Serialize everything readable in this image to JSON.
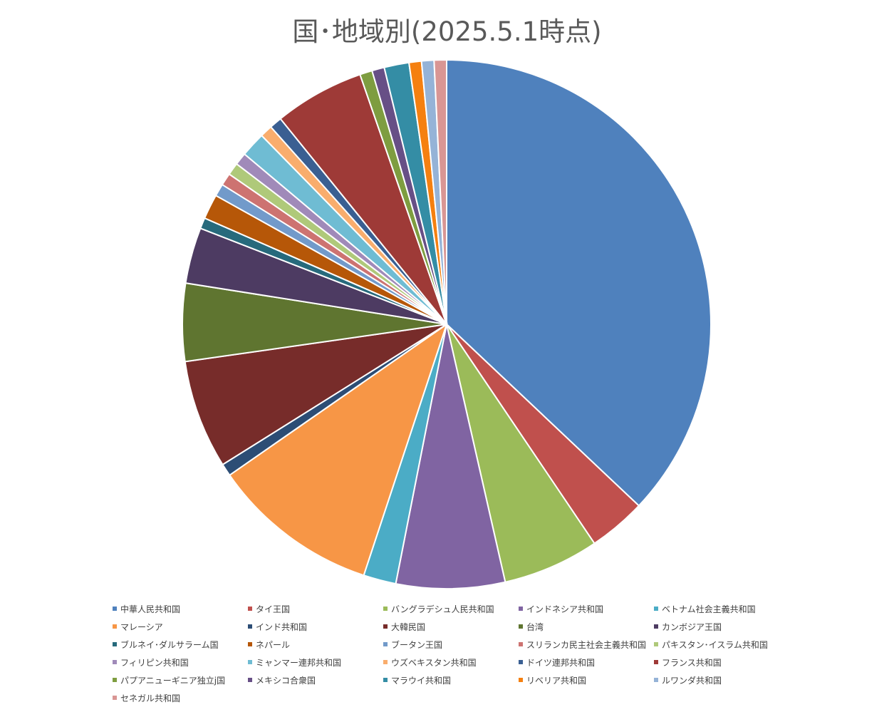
{
  "chart_data": {
    "type": "pie",
    "title": "国･地域別(2025.5.1時点)",
    "legend_position": "bottom",
    "categories": [
      "中華人民共和国",
      "タイ王国",
      "バングラデシュ人民共和国",
      "インドネシア共和国",
      "ベトナム社会主義共和国",
      "マレーシア",
      "インド共和国",
      "大韓民国",
      "台湾",
      "カンボジア王国",
      "ブルネイ･ダルサラーム国",
      "ネパール",
      "ブータン王国",
      "スリランカ民主社会主義共和国",
      "パキスタン･イスラム共和国",
      "フィリピン共和国",
      "ミャンマー連邦共和国",
      "ウズベキスタン共和国",
      "ドイツ連邦共和国",
      "フランス共和国",
      "パプアニューギニア独立j国",
      "メキシコ合衆国",
      "マラウイ共和国",
      "リベリア共和国",
      "ルワンダ共和国",
      "セネガル共和国"
    ],
    "values": [
      39.0,
      3.7,
      6.2,
      7.0,
      2.1,
      10.8,
      0.8,
      7.0,
      5.0,
      3.6,
      0.7,
      1.6,
      0.8,
      0.8,
      0.8,
      0.8,
      1.6,
      0.8,
      0.8,
      5.8,
      0.8,
      0.8,
      1.6,
      0.8,
      0.8,
      0.8
    ],
    "colors": [
      "#4F81BD",
      "#C0504D",
      "#9BBB59",
      "#8064A2",
      "#4BACC6",
      "#F79646",
      "#2C4D75",
      "#772C2A",
      "#5F7530",
      "#4D3B62",
      "#276A7C",
      "#B65708",
      "#729ACA",
      "#CD7371",
      "#AFC97A",
      "#A08AB9",
      "#6FBCD3",
      "#F9AD6D",
      "#3A5F92",
      "#9E3A37",
      "#7E9D40",
      "#674F86",
      "#348DA5",
      "#F58010",
      "#95B3D7",
      "#D99694"
    ]
  }
}
